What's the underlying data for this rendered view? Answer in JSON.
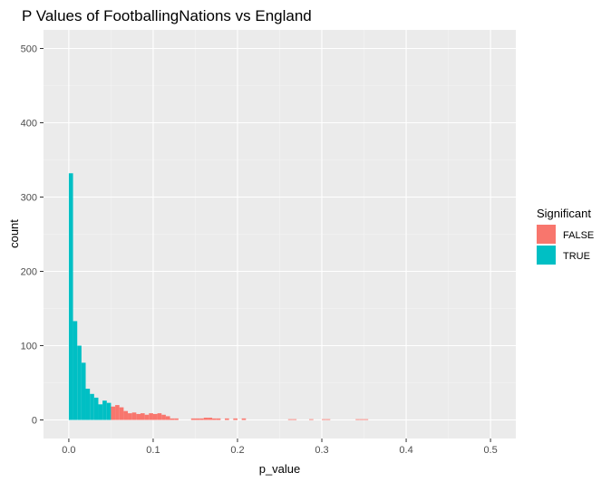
{
  "chart_data": {
    "type": "histogram",
    "title": "P Values of FootballingNations vs England",
    "xlabel": "p_value",
    "ylabel": "count",
    "xlim": [
      -0.03,
      0.53
    ],
    "ylim": [
      -25,
      525
    ],
    "x_ticks": [
      0.0,
      0.1,
      0.2,
      0.3,
      0.4,
      0.5
    ],
    "x_tick_labels": [
      "0.0",
      "0.1",
      "0.2",
      "0.3",
      "0.4",
      "0.5"
    ],
    "y_ticks": [
      0,
      100,
      200,
      300,
      400,
      500
    ],
    "y_tick_labels": [
      "0",
      "100",
      "200",
      "300",
      "400",
      "500"
    ],
    "grid": true,
    "bin_width": 0.005,
    "legend": {
      "title": "Significant",
      "position": "right",
      "entries": [
        {
          "label": "FALSE",
          "color": "#F8766D"
        },
        {
          "label": "TRUE",
          "color": "#00BFC4"
        }
      ]
    },
    "series": [
      {
        "name": "TRUE",
        "color": "#00BFC4",
        "x": [
          0.0,
          0.005,
          0.01,
          0.015,
          0.02,
          0.025,
          0.03,
          0.035,
          0.04,
          0.045
        ],
        "values": [
          332,
          133,
          100,
          77,
          42,
          35,
          30,
          21,
          26,
          23
        ]
      },
      {
        "name": "FALSE",
        "color": "#F8766D",
        "x": [
          0.05,
          0.055,
          0.06,
          0.065,
          0.07,
          0.075,
          0.08,
          0.085,
          0.09,
          0.095,
          0.1,
          0.105,
          0.11,
          0.115,
          0.12,
          0.125,
          0.13,
          0.135,
          0.14,
          0.145,
          0.15,
          0.155,
          0.16,
          0.165,
          0.17,
          0.175,
          0.18,
          0.185,
          0.19,
          0.195,
          0.2,
          0.205,
          0.21,
          0.215,
          0.22,
          0.225,
          0.23,
          0.235,
          0.24,
          0.245,
          0.25,
          0.255,
          0.26,
          0.265,
          0.27,
          0.275,
          0.28,
          0.285,
          0.29,
          0.295,
          0.3,
          0.305,
          0.31,
          0.315,
          0.32,
          0.325,
          0.33,
          0.335,
          0.34,
          0.345,
          0.35
        ],
        "values": [
          18,
          20,
          17,
          12,
          9,
          10,
          8,
          9,
          7,
          9,
          8,
          9,
          7,
          5,
          2,
          2,
          0,
          0,
          0,
          2,
          2,
          2,
          3,
          3,
          2,
          2,
          0,
          2,
          0,
          2,
          0,
          2,
          0,
          0,
          0,
          0,
          0,
          0,
          0,
          0,
          0,
          0,
          1,
          1,
          0,
          0,
          0,
          1,
          0,
          0,
          1,
          1,
          0,
          0,
          0,
          0,
          0,
          0,
          1,
          1,
          1
        ]
      }
    ]
  }
}
